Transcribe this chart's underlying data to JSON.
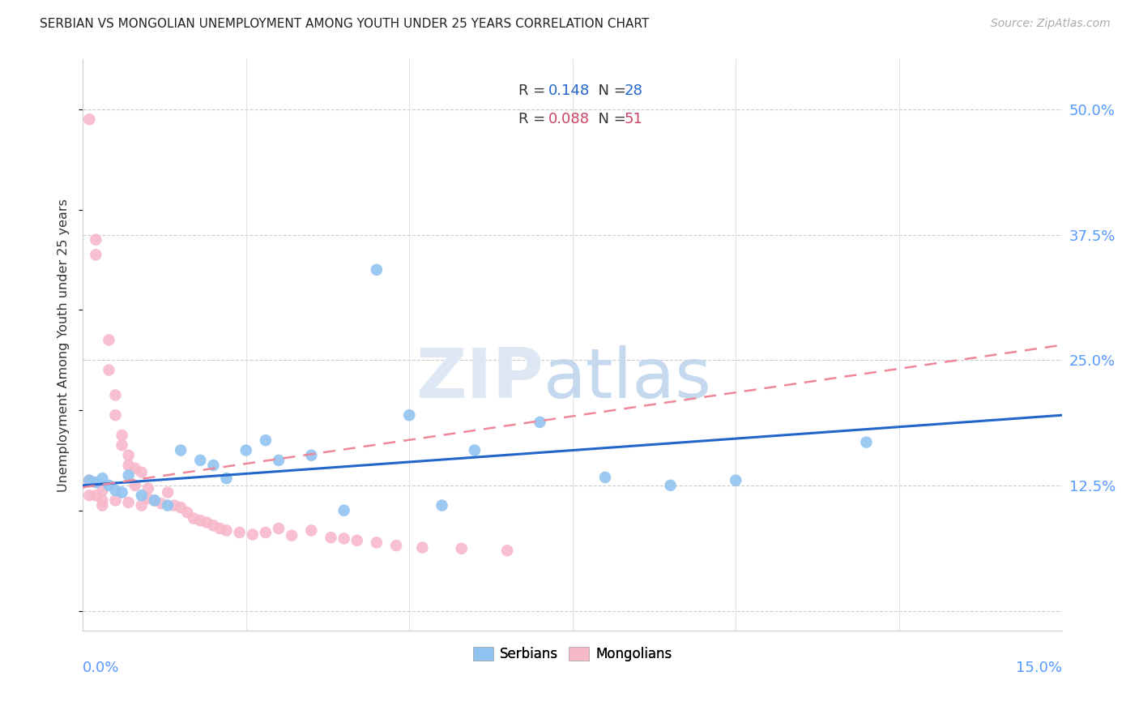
{
  "title": "SERBIAN VS MONGOLIAN UNEMPLOYMENT AMONG YOUTH UNDER 25 YEARS CORRELATION CHART",
  "source": "Source: ZipAtlas.com",
  "ylabel": "Unemployment Among Youth under 25 years",
  "xlim": [
    0.0,
    0.15
  ],
  "ylim": [
    -0.02,
    0.55
  ],
  "yticks": [
    0.0,
    0.125,
    0.25,
    0.375,
    0.5
  ],
  "ytick_labels": [
    "",
    "12.5%",
    "25.0%",
    "37.5%",
    "50.0%"
  ],
  "legend_r_serbian": "R =  0.148",
  "legend_n_serbian": "N = 28",
  "legend_r_mongolian": "R =  0.088",
  "legend_n_mongolian": "N = 51",
  "serbian_color": "#90c4f0",
  "mongolian_color": "#f7b8ca",
  "serbian_line_color": "#2266cc",
  "mongolian_line_color": "#ee8899",
  "serbian_x": [
    0.001,
    0.002,
    0.003,
    0.004,
    0.005,
    0.006,
    0.007,
    0.009,
    0.011,
    0.013,
    0.015,
    0.018,
    0.02,
    0.022,
    0.025,
    0.028,
    0.03,
    0.035,
    0.04,
    0.045,
    0.05,
    0.055,
    0.06,
    0.07,
    0.08,
    0.09,
    0.1,
    0.12
  ],
  "serbian_y": [
    0.13,
    0.128,
    0.132,
    0.125,
    0.12,
    0.118,
    0.135,
    0.115,
    0.11,
    0.105,
    0.16,
    0.15,
    0.145,
    0.132,
    0.16,
    0.17,
    0.15,
    0.155,
    0.1,
    0.34,
    0.195,
    0.105,
    0.16,
    0.188,
    0.133,
    0.125,
    0.13,
    0.168
  ],
  "mongolian_x": [
    0.001,
    0.001,
    0.001,
    0.002,
    0.002,
    0.002,
    0.003,
    0.003,
    0.003,
    0.004,
    0.004,
    0.005,
    0.005,
    0.005,
    0.006,
    0.006,
    0.007,
    0.007,
    0.007,
    0.008,
    0.008,
    0.009,
    0.009,
    0.01,
    0.01,
    0.011,
    0.012,
    0.013,
    0.014,
    0.015,
    0.016,
    0.017,
    0.018,
    0.019,
    0.02,
    0.021,
    0.022,
    0.024,
    0.026,
    0.028,
    0.03,
    0.032,
    0.035,
    0.038,
    0.04,
    0.042,
    0.045,
    0.048,
    0.052,
    0.058,
    0.065
  ],
  "mongolian_y": [
    0.49,
    0.13,
    0.115,
    0.37,
    0.355,
    0.115,
    0.12,
    0.11,
    0.105,
    0.27,
    0.24,
    0.215,
    0.195,
    0.11,
    0.175,
    0.165,
    0.155,
    0.145,
    0.108,
    0.142,
    0.125,
    0.138,
    0.105,
    0.122,
    0.112,
    0.11,
    0.107,
    0.118,
    0.105,
    0.103,
    0.098,
    0.092,
    0.09,
    0.088,
    0.085,
    0.082,
    0.08,
    0.078,
    0.076,
    0.078,
    0.082,
    0.075,
    0.08,
    0.073,
    0.072,
    0.07,
    0.068,
    0.065,
    0.063,
    0.062,
    0.06
  ]
}
